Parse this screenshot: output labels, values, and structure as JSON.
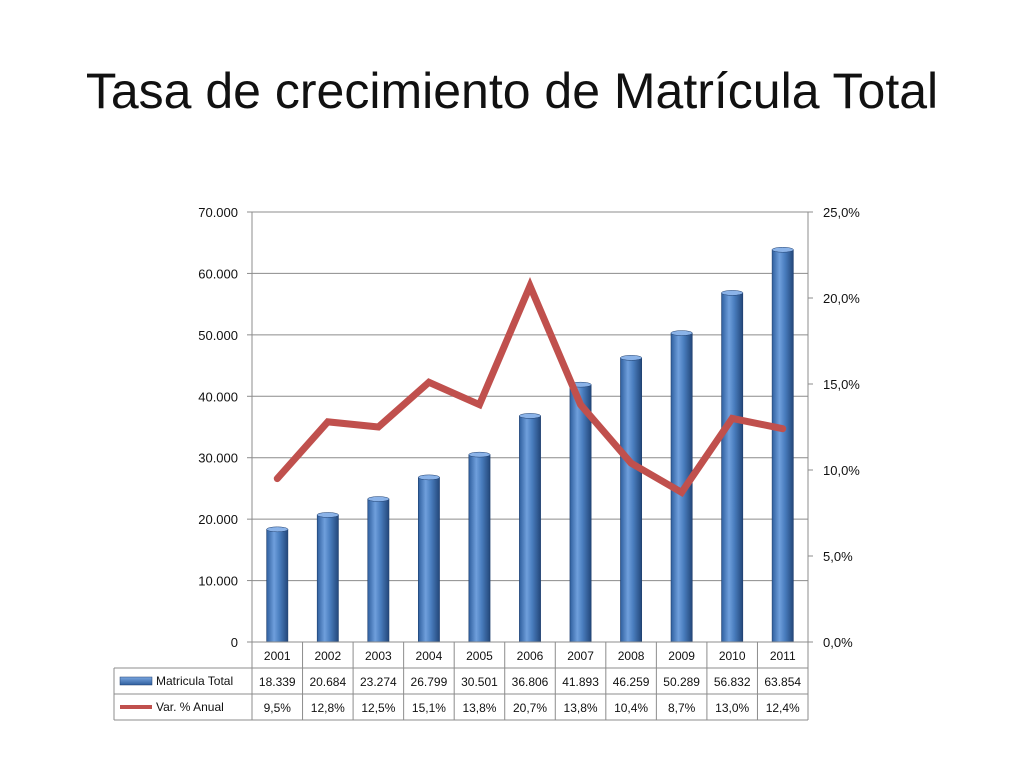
{
  "title": "Tasa de crecimiento de Matrícula Total",
  "chart_data": {
    "type": "bar",
    "categories": [
      "2001",
      "2002",
      "2003",
      "2004",
      "2005",
      "2006",
      "2007",
      "2008",
      "2009",
      "2010",
      "2011"
    ],
    "series": [
      {
        "name": "Matricula Total",
        "type": "bar",
        "axis": "left",
        "color": "#4a7ebf",
        "values": [
          18339,
          20684,
          23274,
          26799,
          30501,
          36806,
          41893,
          46259,
          50289,
          56832,
          63854
        ],
        "labels": [
          "18.339",
          "20.684",
          "23.274",
          "26.799",
          "30.501",
          "36.806",
          "41.893",
          "46.259",
          "50.289",
          "56.832",
          "63.854"
        ]
      },
      {
        "name": "Var. % Anual",
        "type": "line",
        "axis": "right",
        "color": "#c0504d",
        "values": [
          9.5,
          12.8,
          12.5,
          15.1,
          13.8,
          20.7,
          13.8,
          10.4,
          8.7,
          13.0,
          12.4
        ],
        "labels": [
          "9,5%",
          "12,8%",
          "12,5%",
          "15,1%",
          "13,8%",
          "20,7%",
          "13,8%",
          "10,4%",
          "8,7%",
          "13,0%",
          "12,4%"
        ]
      }
    ],
    "y_left": {
      "ylim": [
        0,
        70000
      ],
      "ticks": [
        0,
        10000,
        20000,
        30000,
        40000,
        50000,
        60000,
        70000
      ],
      "tick_labels": [
        "0",
        "10.000",
        "20.000",
        "30.000",
        "40.000",
        "50.000",
        "60.000",
        "70.000"
      ]
    },
    "y_right": {
      "ylim": [
        0,
        25
      ],
      "ticks": [
        0,
        5,
        10,
        15,
        20,
        25
      ],
      "tick_labels": [
        "0,0%",
        "5,0%",
        "10,0%",
        "15,0%",
        "20,0%",
        "25,0%"
      ]
    },
    "grid": true,
    "legend": "data-table"
  }
}
